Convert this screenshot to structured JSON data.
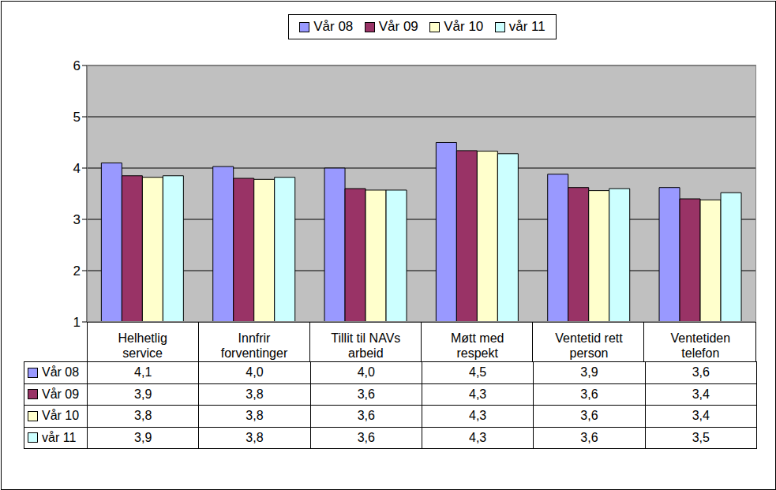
{
  "chart_data": {
    "type": "bar",
    "categories": [
      "Helhetlig service",
      "Innfrir forventinger",
      "Tillit til NAVs arbeid",
      "Møtt med respekt",
      "Ventetid rett person",
      "Ventetiden telefon"
    ],
    "series": [
      {
        "name": "Vår 08",
        "color": "#9999FF",
        "values": [
          4.1,
          4.03,
          4.0,
          4.5,
          3.88,
          3.62
        ],
        "value_labels": [
          "4,1",
          "4,0",
          "4,0",
          "4,5",
          "3,9",
          "3,6"
        ]
      },
      {
        "name": "Vår 09",
        "color": "#993366",
        "values": [
          3.85,
          3.8,
          3.6,
          4.34,
          3.62,
          3.4
        ],
        "value_labels": [
          "3,9",
          "3,8",
          "3,6",
          "4,3",
          "3,6",
          "3,4"
        ]
      },
      {
        "name": "Vår 10",
        "color": "#FFFFCC",
        "values": [
          3.82,
          3.78,
          3.57,
          4.33,
          3.56,
          3.38
        ],
        "value_labels": [
          "3,8",
          "3,8",
          "3,6",
          "4,3",
          "3,6",
          "3,4"
        ]
      },
      {
        "name": "vår 11",
        "color": "#CCFFFF",
        "values": [
          3.85,
          3.82,
          3.57,
          4.28,
          3.6,
          3.52
        ],
        "value_labels": [
          "3,9",
          "3,8",
          "3,6",
          "4,3",
          "3,6",
          "3,5"
        ]
      }
    ],
    "ylim": [
      1,
      6
    ],
    "yticks": [
      1,
      2,
      3,
      4,
      5,
      6
    ],
    "grid": true,
    "legend": "top"
  }
}
